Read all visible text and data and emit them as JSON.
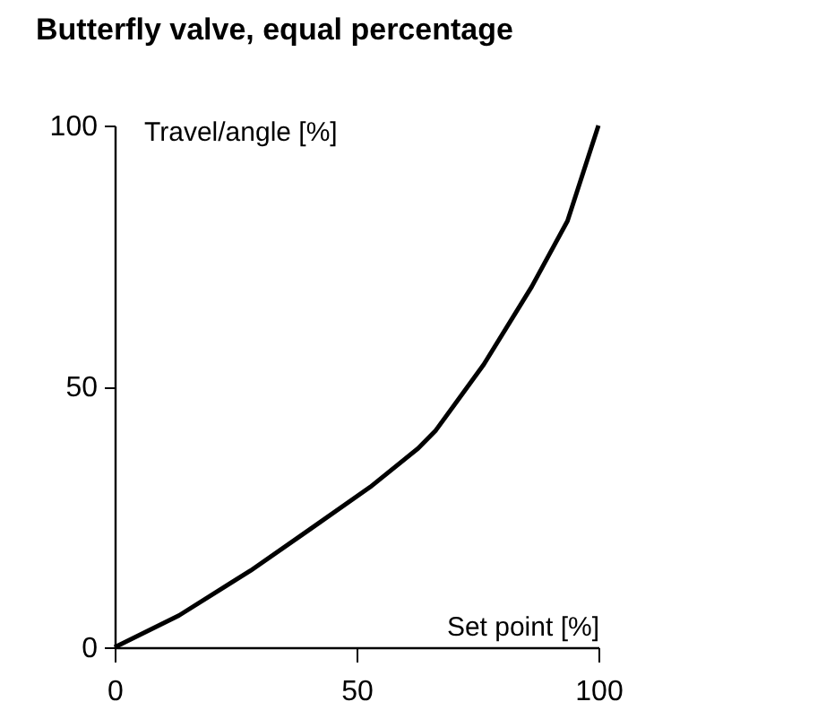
{
  "chart_data": {
    "type": "line",
    "title": "Butterfly valve, equal percentage",
    "xlabel": "Set point [%]",
    "ylabel": "Travel/angle [%]",
    "x": [
      0,
      13.3,
      28.1,
      40.5,
      52.8,
      62.7,
      66.4,
      76.3,
      86.2,
      93.6,
      100
    ],
    "series": [
      {
        "color": "#000000",
        "values": [
          0,
          6.1,
          14.7,
          22.7,
          30.7,
          38.1,
          41.6,
          54.2,
          69.1,
          81.7,
          100
        ]
      }
    ],
    "xlim": [
      0,
      100
    ],
    "xticks": [
      0,
      50,
      100
    ],
    "ylim": [
      0,
      100
    ],
    "yticks": [
      0,
      50,
      100
    ],
    "grid": false,
    "marker": "none",
    "line_style": "solid"
  }
}
